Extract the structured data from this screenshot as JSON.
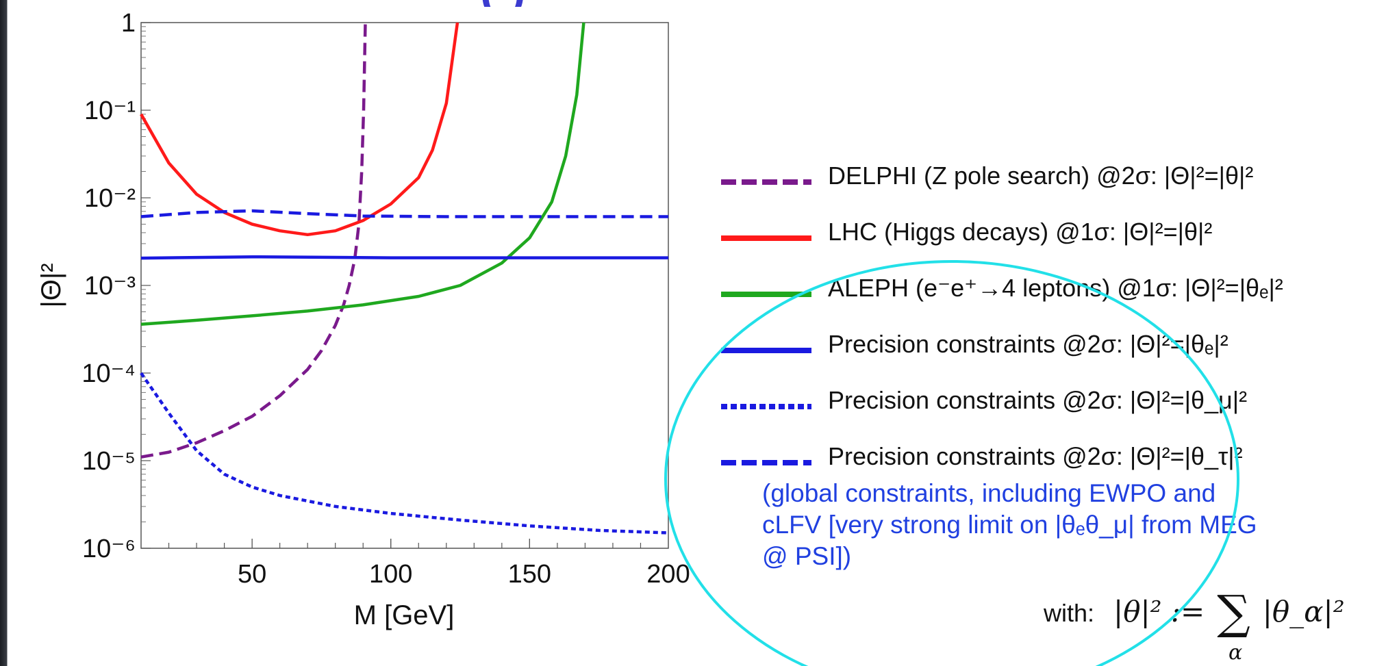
{
  "heading_fragment": "(                          )",
  "chart_data": {
    "type": "line",
    "title": "",
    "xlabel": "M [GeV]",
    "ylabel": "|Θ|²",
    "xlim": [
      10,
      200
    ],
    "ylim": [
      1e-06,
      1
    ],
    "y_scale": "log",
    "x_ticks": [
      50,
      100,
      150,
      200
    ],
    "y_tick_labels": [
      {
        "value": 1,
        "label": "1"
      },
      {
        "value": 0.1,
        "label": "10⁻¹"
      },
      {
        "value": 0.01,
        "label": "10⁻²"
      },
      {
        "value": 0.001,
        "label": "10⁻³"
      },
      {
        "value": 0.0001,
        "label": "10⁻⁴"
      },
      {
        "value": 1e-05,
        "label": "10⁻⁵"
      },
      {
        "value": 1e-06,
        "label": "10⁻⁶"
      }
    ],
    "grid": false,
    "legend_position": "right",
    "series": [
      {
        "name": "DELPHI (Z pole search) @2σ: |Θ|²=|θ|²",
        "color": "#7a1a8c",
        "style": "dashed",
        "points": [
          [
            10,
            1.1e-05
          ],
          [
            20,
            1.25e-05
          ],
          [
            30,
            1.6e-05
          ],
          [
            40,
            2.2e-05
          ],
          [
            50,
            3.2e-05
          ],
          [
            60,
            5.5e-05
          ],
          [
            70,
            0.00011
          ],
          [
            75,
            0.00018
          ],
          [
            80,
            0.00035
          ],
          [
            83,
            0.0006
          ],
          [
            85,
            0.001
          ],
          [
            87,
            0.002
          ],
          [
            88.5,
            0.005
          ],
          [
            89.5,
            0.02
          ],
          [
            90.2,
            0.1
          ],
          [
            90.8,
            1
          ]
        ]
      },
      {
        "name": "LHC (Higgs decays) @1σ: |Θ|²=|θ|²",
        "color": "#ff1a1a",
        "style": "solid",
        "points": [
          [
            10,
            0.09
          ],
          [
            20,
            0.025
          ],
          [
            30,
            0.011
          ],
          [
            40,
            0.0068
          ],
          [
            50,
            0.005
          ],
          [
            60,
            0.0042
          ],
          [
            70,
            0.0038
          ],
          [
            80,
            0.0042
          ],
          [
            90,
            0.0055
          ],
          [
            100,
            0.0085
          ],
          [
            110,
            0.017
          ],
          [
            115,
            0.035
          ],
          [
            120,
            0.12
          ],
          [
            124,
            1
          ]
        ]
      },
      {
        "name": "ALEPH (e⁻e⁺→4 leptons) @1σ: |Θ|²=|θₑ|²",
        "color": "#1fa81f",
        "style": "solid",
        "points": [
          [
            10,
            0.00036
          ],
          [
            30,
            0.0004
          ],
          [
            50,
            0.00045
          ],
          [
            70,
            0.00051
          ],
          [
            90,
            0.0006
          ],
          [
            110,
            0.00075
          ],
          [
            125,
            0.001
          ],
          [
            140,
            0.0018
          ],
          [
            150,
            0.0035
          ],
          [
            158,
            0.009
          ],
          [
            163,
            0.03
          ],
          [
            167,
            0.15
          ],
          [
            169.5,
            1
          ]
        ]
      },
      {
        "name": "Precision constraints @2σ: |Θ|²=|θₑ|²",
        "color": "#1a1ae0",
        "style": "solid",
        "points": [
          [
            10,
            0.00205
          ],
          [
            50,
            0.00212
          ],
          [
            100,
            0.00207
          ],
          [
            150,
            0.00207
          ],
          [
            200,
            0.00207
          ]
        ]
      },
      {
        "name": "Precision constraints @2σ: |Θ|²=|θ_μ|²",
        "color": "#1a1ae0",
        "style": "dotted",
        "points": [
          [
            10,
            0.0001
          ],
          [
            20,
            3.5e-05
          ],
          [
            30,
            1.3e-05
          ],
          [
            40,
            7e-06
          ],
          [
            50,
            5e-06
          ],
          [
            60,
            4e-06
          ],
          [
            80,
            3e-06
          ],
          [
            100,
            2.5e-06
          ],
          [
            125,
            2.1e-06
          ],
          [
            150,
            1.8e-06
          ],
          [
            175,
            1.6e-06
          ],
          [
            200,
            1.5e-06
          ]
        ]
      },
      {
        "name": "Precision constraints @2σ: |Θ|²=|θ_τ|²",
        "color": "#1a1ae0",
        "style": "dashed",
        "points": [
          [
            10,
            0.0061
          ],
          [
            30,
            0.0068
          ],
          [
            50,
            0.0071
          ],
          [
            70,
            0.0066
          ],
          [
            90,
            0.0062
          ],
          [
            120,
            0.0061
          ],
          [
            160,
            0.0061
          ],
          [
            200,
            0.0061
          ]
        ]
      }
    ]
  },
  "legend_entries": [
    {
      "label": "DELPHI (Z pole search) @2σ: |Θ|²=|θ|²",
      "color": "#7a1a8c",
      "style": "dashed"
    },
    {
      "label": "LHC (Higgs decays) @1σ: |Θ|²=|θ|²",
      "color": "#ff1a1a",
      "style": "solid"
    },
    {
      "label": "ALEPH (e⁻e⁺→4 leptons) @1σ: |Θ|²=|θₑ|²",
      "color": "#1fa81f",
      "style": "solid"
    },
    {
      "label": "Precision constraints @2σ: |Θ|²=|θₑ|²",
      "color": "#1a1ae0",
      "style": "solid"
    },
    {
      "label": "Precision constraints @2σ: |Θ|²=|θ_μ|²",
      "color": "#1a1ae0",
      "style": "dotted"
    },
    {
      "label": "Precision constraints @2σ: |Θ|²=|θ_τ|²",
      "color": "#1a1ae0",
      "style": "dashed"
    }
  ],
  "note_lines": [
    "(global constraints, including EWPO and",
    "cLFV [very strong limit on |θₑθ_μ| from MEG",
    "@ PSI])"
  ],
  "formula": {
    "prefix": "with:",
    "lhs": "|θ|² :=",
    "sum": "∑",
    "rhs": "|θ_α|²",
    "sub": "α"
  },
  "colors": {
    "note_text": "#2040e0",
    "highlight_oval": "#22e0e8",
    "heading": "#3b3bd0"
  }
}
